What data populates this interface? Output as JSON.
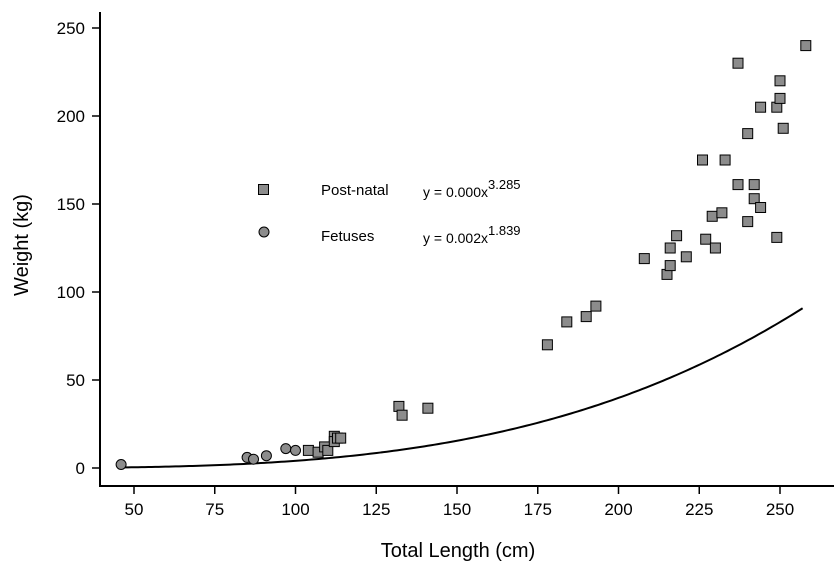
{
  "chart_data": {
    "type": "scatter",
    "xlabel": "Total Length (cm)",
    "ylabel": "Weight (kg)",
    "xlim": [
      40,
      265
    ],
    "ylim": [
      -10,
      260
    ],
    "x_ticks": [
      50,
      75,
      100,
      125,
      150,
      175,
      200,
      225,
      250
    ],
    "y_ticks": [
      0,
      50,
      100,
      150,
      200,
      250
    ],
    "x_tick_labels": [
      "50",
      "75",
      "100",
      "125",
      "150",
      "175",
      "200",
      "225",
      "250"
    ],
    "y_tick_labels": [
      "0",
      "50",
      "100",
      "150",
      "200",
      "250"
    ],
    "grid": false,
    "legend_position": "upper-left",
    "series": [
      {
        "name": "Post-natal",
        "marker": "square",
        "color": "#8c8c8c",
        "equation": "y = 0.000x",
        "exponent": "3.285",
        "points": [
          [
            104,
            10
          ],
          [
            107,
            9
          ],
          [
            109,
            12
          ],
          [
            110,
            10
          ],
          [
            112,
            18
          ],
          [
            112,
            15
          ],
          [
            113,
            17
          ],
          [
            114,
            17
          ],
          [
            132,
            35
          ],
          [
            133,
            30
          ],
          [
            141,
            34
          ],
          [
            178,
            70
          ],
          [
            184,
            83
          ],
          [
            190,
            86
          ],
          [
            193,
            92
          ],
          [
            208,
            119
          ],
          [
            215,
            110
          ],
          [
            216,
            125
          ],
          [
            216,
            115
          ],
          [
            218,
            132
          ],
          [
            221,
            120
          ],
          [
            226,
            175
          ],
          [
            227,
            130
          ],
          [
            229,
            143
          ],
          [
            230,
            125
          ],
          [
            232,
            145
          ],
          [
            233,
            175
          ],
          [
            237,
            230
          ],
          [
            237,
            161
          ],
          [
            240,
            190
          ],
          [
            240,
            140
          ],
          [
            242,
            161
          ],
          [
            242,
            153
          ],
          [
            244,
            205
          ],
          [
            244,
            148
          ],
          [
            249,
            205
          ],
          [
            249,
            131
          ],
          [
            250,
            220
          ],
          [
            250,
            210
          ],
          [
            251,
            193
          ],
          [
            258,
            240
          ]
        ]
      },
      {
        "name": "Fetuses",
        "marker": "circle",
        "color": "#8c8c8c",
        "equation": "y = 0.002x",
        "exponent": "1.839",
        "points": [
          [
            46,
            2
          ],
          [
            85,
            6
          ],
          [
            87,
            5
          ],
          [
            91,
            7
          ],
          [
            97,
            11
          ],
          [
            100,
            10
          ]
        ]
      }
    ],
    "fit_curve": {
      "coefficient": 1.1e-06,
      "exponent": 3.285,
      "x_range": [
        46,
        257
      ],
      "color": "#000000"
    }
  }
}
